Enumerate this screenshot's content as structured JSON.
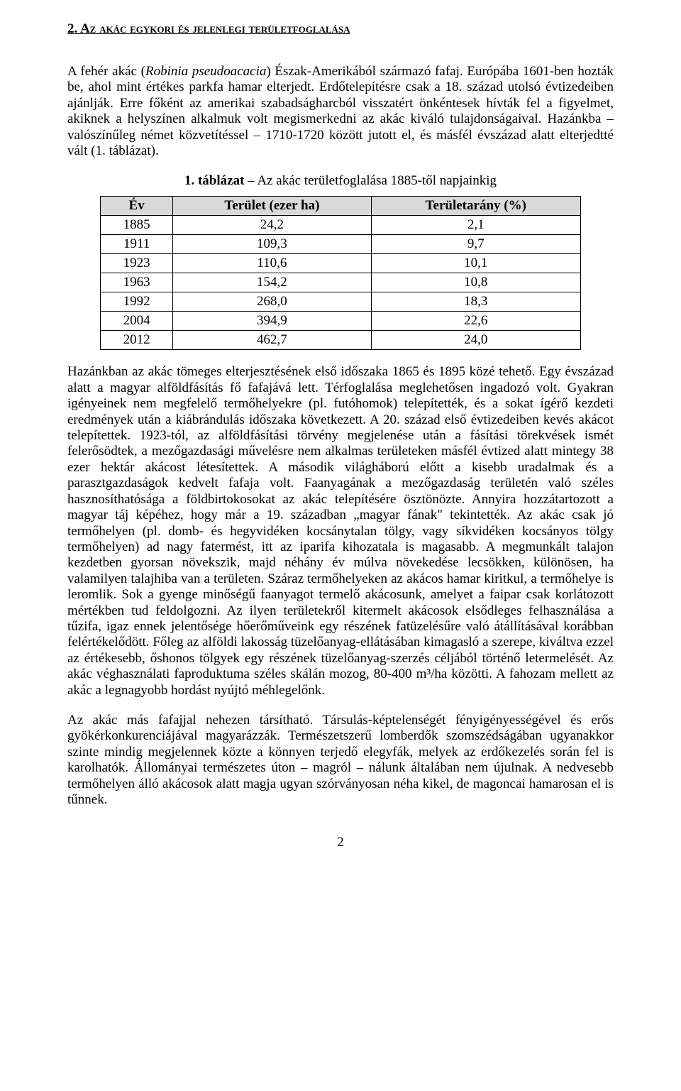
{
  "heading": "2. Az akác egykori és jelenlegi területfoglalása",
  "para1_pre": "A fehér akác (",
  "para1_italic": "Robinia pseudoacacia",
  "para1_post": ") Észak-Amerikából származó fafaj. Európába 1601-ben hozták be, ahol mint értékes parkfa hamar elterjedt. Erdőtelepítésre csak a 18. század utolsó évtizedeiben ajánlják. Erre főként az amerikai szabadságharcból visszatért önkéntesek hívták fel a figyelmet, akiknek a helyszínen alkalmuk volt megismerkedni az akác kiváló tulajdonságaival. Hazánkba – valószínűleg német közvetítéssel – 1710-1720 között jutott el, és másfél évszázad alatt elterjedtté vált (1. táblázat).",
  "table_caption_bold": "1. táblázat",
  "table_caption_rest": " – Az akác területfoglalása 1885-től napjainkig",
  "table": {
    "columns": [
      "Év",
      "Terület (ezer ha)",
      "Területarány (%)"
    ],
    "rows": [
      [
        "1885",
        "24,2",
        "2,1"
      ],
      [
        "1911",
        "109,3",
        "9,7"
      ],
      [
        "1923",
        "110,6",
        "10,1"
      ],
      [
        "1963",
        "154,2",
        "10,8"
      ],
      [
        "1992",
        "268,0",
        "18,3"
      ],
      [
        "2004",
        "394,9",
        "22,6"
      ],
      [
        "2012",
        "462,7",
        "24,0"
      ]
    ],
    "header_bg": "#d9d9d9",
    "border_color": "#000000"
  },
  "para2": "Hazánkban az akác tömeges elterjesztésének első időszaka 1865 és 1895 közé tehető. Egy évszázad alatt a magyar alföldfásítás fő fafajává lett. Térfoglalása meglehetősen ingadozó volt. Gyakran igényeinek nem megfelelő termőhelyekre (pl. futóhomok) telepítették, és a sokat ígérő kezdeti eredmények után a kiábrándulás időszaka következett. A 20. század első évtizedeiben kevés akácot telepítettek. 1923-tól, az alföldfásítási törvény megjelenése után a fásítási törekvések ismét felerősödtek, a mezőgazdasági művelésre nem alkalmas területeken másfél évtized alatt mintegy 38 ezer hektár akácost létesítettek. A második világháború előtt a kisebb uradalmak és a parasztgazdaságok kedvelt fafaja volt. Faanyagának a mezőgazdaság területén való széles hasznosíthatósága a földbirtokosokat az akác telepítésére ösztönözte. Annyira hozzátartozott a magyar táj képéhez, hogy már a 19. században „magyar fának\" tekintették. Az akác csak jó termőhelyen (pl. domb- és hegyvidéken kocsánytalan tölgy, vagy síkvidéken kocsányos tölgy termőhelyen) ad nagy fatermést, itt az iparifa kihozatala is magasabb. A megmunkált talajon kezdetben gyorsan növekszik, majd néhány év múlva növekedése lecsökken, különösen, ha valamilyen talajhiba van a területen. Száraz termőhelyeken az akácos hamar kiritkul, a termőhelye is leromlik. Sok a gyenge minőségű faanyagot termelő akácosunk, amelyet a faipar csak korlátozott mértékben tud feldolgozni. Az ilyen területekről kitermelt akácosok elsődleges felhasználása a tűzifa, igaz ennek jelentősége hőerőműveink egy részének fatüzelésűre való átállításával korábban felértékelődött. Főleg az alföldi lakosság tüzelőanyag-ellátásában kimagasló a szerepe, kiváltva ezzel az értékesebb, őshonos tölgyek egy részének tüzelőanyag-szerzés céljából történő letermelését. Az akác véghasználati faproduktuma széles skálán mozog, 80-400 m³/ha közötti. A fahozam mellett az akác a legnagyobb hordást nyújtó méhlegelőnk.",
  "para3": "Az akác más fafajjal nehezen társítható. Társulás-képtelenségét fényigényességével és erős gyökérkonkurenciájával magyarázzák. Természetszerű lomberdők szomszédságában ugyanakkor szinte mindig megjelennek közte a könnyen terjedő elegyfák, melyek az erdőkezelés során fel is karolhatók. Állományai természetes úton – magról – nálunk általában nem újulnak. A nedvesebb termőhelyen álló akácosok alatt magja ugyan szórványosan néha kikel, de magoncai hamarosan el is tűnnek.",
  "page_number": "2"
}
